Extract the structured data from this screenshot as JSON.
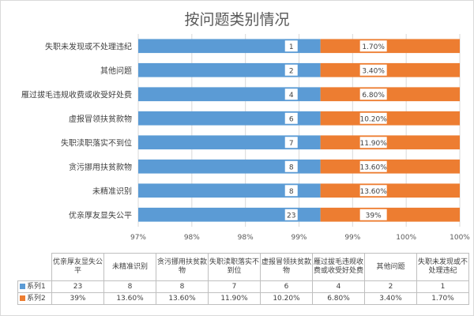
{
  "colors": {
    "series1": "#5b9bd5",
    "series2": "#ed7d31",
    "grid": "#d9d9d9",
    "text": "#595959"
  },
  "chart_data": {
    "type": "bar",
    "orientation": "horizontal",
    "stacked": "percent",
    "title": "按问题类别情况",
    "categories": [
      "优亲厚友显失公平",
      "未精准识别",
      "贪污挪用扶贫款物",
      "失职渎职落实不到位",
      "虚报冒领扶贫款物",
      "雁过拔毛违规收费或收受好处费",
      "其他问题",
      "失职未发现或不处理违纪"
    ],
    "series": [
      {
        "name": "系列1",
        "values": [
          23,
          8,
          8,
          7,
          6,
          4,
          2,
          1
        ],
        "labels": [
          "23",
          "8",
          "8",
          "7",
          "6",
          "4",
          "2",
          "1"
        ]
      },
      {
        "name": "系列2",
        "values": [
          39,
          13.6,
          13.6,
          11.9,
          10.2,
          6.8,
          3.4,
          1.7
        ],
        "labels": [
          "39%",
          "13.60%",
          "13.60%",
          "11.90%",
          "10.20%",
          "6.80%",
          "3.40%",
          "1.70%"
        ]
      }
    ],
    "x_ticks": [
      "97%",
      "98%",
      "98%",
      "99%",
      "99%",
      "100%",
      "100%"
    ],
    "xlim": [
      97,
      100
    ],
    "boundary": 98.7,
    "grid": true,
    "legend": "data-table"
  }
}
